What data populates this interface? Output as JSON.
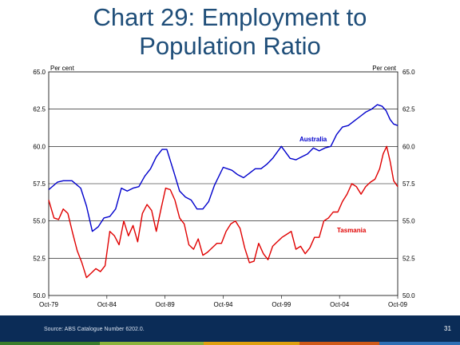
{
  "slide": {
    "title_line1": "Chart 29: Employment to",
    "title_line2": "Population Ratio",
    "source": "Source: ABS Catalogue Number 6202.0.",
    "page_number": "31"
  },
  "colors": {
    "title": "#1f4e79",
    "footer": "#0b2c57",
    "australia": "#0000cc",
    "tasmania": "#e00000",
    "stripe": [
      "#3a7d2c",
      "#8cb43c",
      "#e0a010",
      "#d05a1a",
      "#2f6fb4"
    ]
  },
  "chart_data": {
    "type": "line",
    "ylabel_left": "Per cent",
    "ylabel_right": "Per cent",
    "ylim": [
      50.0,
      65.0
    ],
    "yticks": [
      "50.0",
      "52.5",
      "55.0",
      "57.5",
      "60.0",
      "62.5",
      "65.0"
    ],
    "xlim": [
      1979.75,
      2009.75
    ],
    "xticks": [
      {
        "label": "Oct-79",
        "x": 1979.75
      },
      {
        "label": "Oct-84",
        "x": 1984.75
      },
      {
        "label": "Oct-89",
        "x": 1989.75
      },
      {
        "label": "Oct-94",
        "x": 1994.75
      },
      {
        "label": "Oct-99",
        "x": 1999.75
      },
      {
        "label": "Oct-04",
        "x": 2004.75
      },
      {
        "label": "Oct-09",
        "x": 2009.75
      }
    ],
    "grid": "horizontal",
    "series": [
      {
        "name": "Australia",
        "color": "#0000cc",
        "x": [
          1979.75,
          1980.5,
          1981.0,
          1981.75,
          1982.5,
          1983.0,
          1983.5,
          1984.0,
          1984.5,
          1985.0,
          1985.5,
          1986.0,
          1986.5,
          1987.0,
          1987.5,
          1988.0,
          1988.5,
          1989.0,
          1989.5,
          1989.9,
          1990.5,
          1991.0,
          1991.5,
          1992.0,
          1992.5,
          1993.0,
          1993.5,
          1994.0,
          1994.75,
          1995.5,
          1996.0,
          1996.5,
          1997.0,
          1997.5,
          1998.0,
          1998.5,
          1999.0,
          1999.75,
          2000.5,
          2001.0,
          2001.5,
          2002.0,
          2002.5,
          2003.0,
          2003.5,
          2004.0,
          2004.5,
          2005.0,
          2005.5,
          2006.0,
          2006.5,
          2007.0,
          2007.5,
          2008.0,
          2008.4,
          2008.75,
          2009.1,
          2009.4,
          2009.75
        ],
        "y": [
          57.1,
          57.6,
          57.7,
          57.7,
          57.2,
          56.0,
          54.3,
          54.6,
          55.2,
          55.3,
          55.8,
          57.2,
          57.0,
          57.2,
          57.3,
          58.0,
          58.5,
          59.3,
          59.8,
          59.8,
          58.3,
          57.0,
          56.6,
          56.4,
          55.8,
          55.8,
          56.3,
          57.4,
          58.6,
          58.4,
          58.1,
          57.9,
          58.2,
          58.5,
          58.5,
          58.8,
          59.2,
          60.0,
          59.2,
          59.1,
          59.3,
          59.5,
          59.9,
          59.7,
          59.9,
          60.0,
          60.8,
          61.3,
          61.4,
          61.7,
          62.0,
          62.3,
          62.5,
          62.8,
          62.7,
          62.4,
          61.8,
          61.5,
          61.4
        ]
      },
      {
        "name": "Tasmania",
        "color": "#e00000",
        "x": [
          1979.75,
          1980.2,
          1980.6,
          1981.0,
          1981.4,
          1981.8,
          1982.2,
          1982.6,
          1983.0,
          1983.4,
          1983.8,
          1984.2,
          1984.6,
          1985.0,
          1985.4,
          1985.8,
          1986.2,
          1986.6,
          1987.0,
          1987.4,
          1987.8,
          1988.2,
          1988.6,
          1989.0,
          1989.4,
          1989.8,
          1990.2,
          1990.6,
          1991.0,
          1991.4,
          1991.8,
          1992.2,
          1992.6,
          1993.0,
          1993.4,
          1993.8,
          1994.2,
          1994.6,
          1995.0,
          1995.4,
          1995.8,
          1996.2,
          1996.6,
          1997.0,
          1997.4,
          1997.8,
          1998.2,
          1998.6,
          1999.0,
          1999.4,
          1999.8,
          2000.2,
          2000.6,
          2001.0,
          2001.4,
          2001.8,
          2002.2,
          2002.6,
          2003.0,
          2003.4,
          2003.8,
          2004.2,
          2004.6,
          2005.0,
          2005.4,
          2005.8,
          2006.2,
          2006.6,
          2007.0,
          2007.4,
          2007.8,
          2008.2,
          2008.5,
          2008.8,
          2009.1,
          2009.4,
          2009.75
        ],
        "y": [
          56.4,
          55.2,
          55.1,
          55.8,
          55.5,
          54.2,
          53.0,
          52.2,
          51.2,
          51.5,
          51.8,
          51.6,
          52.0,
          54.3,
          54.0,
          53.4,
          55.0,
          54.0,
          54.7,
          53.6,
          55.5,
          56.1,
          55.7,
          54.3,
          55.8,
          57.2,
          57.1,
          56.4,
          55.2,
          54.8,
          53.4,
          53.1,
          53.8,
          52.7,
          52.9,
          53.2,
          53.5,
          53.5,
          54.3,
          54.8,
          55.0,
          54.5,
          53.2,
          52.2,
          52.3,
          53.5,
          52.8,
          52.4,
          53.3,
          53.6,
          53.9,
          54.1,
          54.3,
          53.1,
          53.3,
          52.8,
          53.2,
          53.9,
          53.9,
          55.0,
          55.2,
          55.6,
          55.6,
          56.3,
          56.8,
          57.5,
          57.3,
          56.8,
          57.3,
          57.6,
          57.8,
          58.5,
          59.5,
          60.0,
          59.0,
          57.7,
          57.3
        ]
      }
    ],
    "annotations": [
      {
        "text": "Australia",
        "series": "Australia"
      },
      {
        "text": "Tasmania",
        "series": "Tasmania"
      }
    ]
  }
}
